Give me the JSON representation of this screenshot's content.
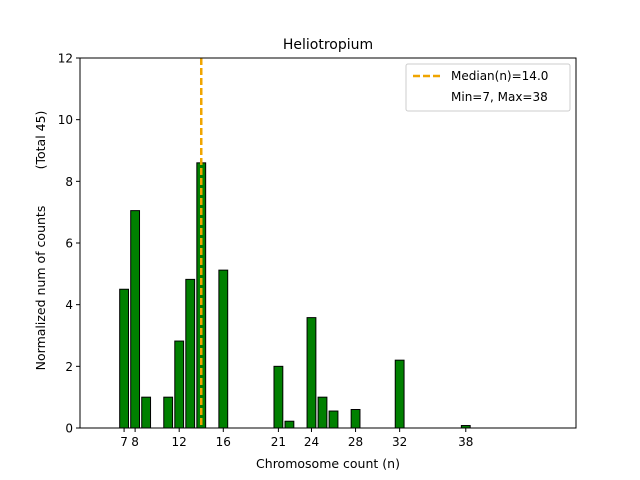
{
  "chart_data": {
    "type": "bar",
    "title": "Heliotropium",
    "xlabel": "Chromosome count (n)",
    "ylabel": "Normalized num of counts",
    "ylabel_note": "(Total 45)",
    "xlim": [
      3,
      48
    ],
    "ylim": [
      0,
      12
    ],
    "x_ticks": [
      7,
      8,
      12,
      16,
      21,
      24,
      28,
      32,
      38
    ],
    "y_ticks": [
      0,
      2,
      4,
      6,
      8,
      10,
      12
    ],
    "bar_color": "#008000",
    "bar_edge_color": "#000000",
    "bars": [
      {
        "x": 7,
        "y": 4.5
      },
      {
        "x": 8,
        "y": 7.05
      },
      {
        "x": 9,
        "y": 1.0
      },
      {
        "x": 11,
        "y": 1.0
      },
      {
        "x": 12,
        "y": 2.82
      },
      {
        "x": 13,
        "y": 4.82
      },
      {
        "x": 14,
        "y": 8.6
      },
      {
        "x": 16,
        "y": 5.12
      },
      {
        "x": 21,
        "y": 2.0
      },
      {
        "x": 22,
        "y": 0.22
      },
      {
        "x": 24,
        "y": 3.58
      },
      {
        "x": 25,
        "y": 1.0
      },
      {
        "x": 26,
        "y": 0.55
      },
      {
        "x": 28,
        "y": 0.6
      },
      {
        "x": 32,
        "y": 2.2
      },
      {
        "x": 38,
        "y": 0.08
      }
    ],
    "median": {
      "value": 14.0,
      "color": "#f0a500"
    },
    "legend": {
      "position": "upper-right",
      "entries": [
        "Median(n)=14.0",
        "Min=7, Max=38"
      ]
    }
  }
}
